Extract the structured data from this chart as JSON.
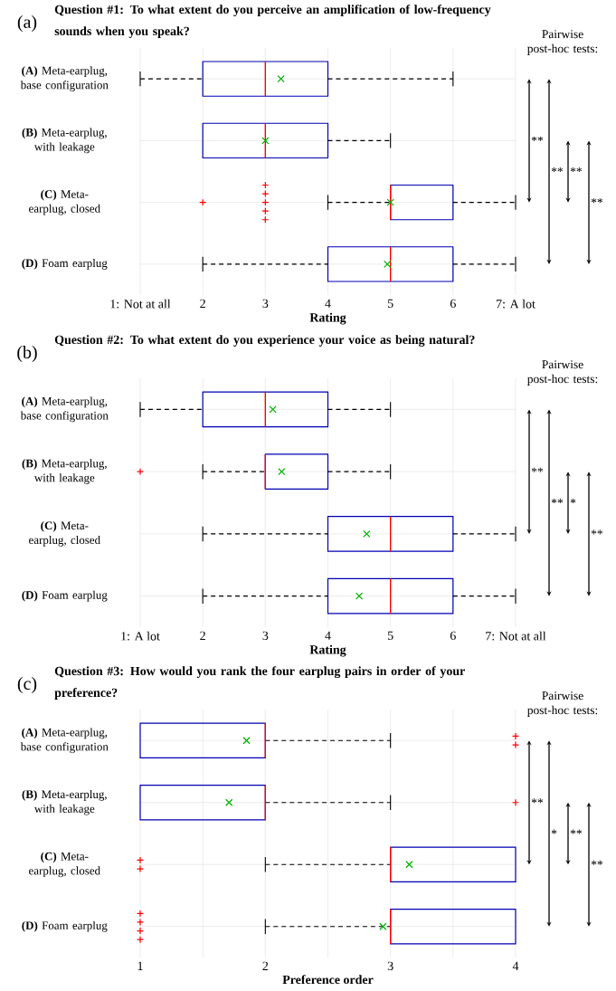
{
  "chart_data": [
    {
      "type": "box",
      "orientation": "horizontal",
      "title": "Question #1: To what extent do you perceive an amplification of low-frequency sounds when you speak?",
      "xlabel": "Rating",
      "categories": [
        "**(A)** Meta-earplug, base configuration",
        "**(B)** Meta-earplug, with leakage",
        "**(C)** Meta-earplug, closed",
        "**(D)** Foam earplug"
      ],
      "boxes": [
        {
          "low": 1,
          "q1": 2,
          "median": 3,
          "q3": 4,
          "high": 6,
          "mean": 3.25
        },
        {
          "low": 2,
          "q1": 2,
          "median": 3,
          "q3": 4,
          "high": 5,
          "mean": 3
        },
        {
          "low": 4,
          "q1": 5,
          "median": 5,
          "q3": 6,
          "high": 7,
          "mean": 5,
          "outliers": [
            2,
            3,
            3,
            3,
            3,
            3
          ]
        },
        {
          "low": 2,
          "q1": 4,
          "median": 5,
          "q3": 6,
          "high": 7,
          "mean": 4.95
        }
      ],
      "xlim": [
        1,
        7
      ],
      "xticks": [
        {
          "value": 1,
          "label": "1: Not at all"
        },
        2,
        3,
        4,
        5,
        6,
        {
          "value": 7,
          "label": "7: A lot"
        }
      ],
      "grid": true,
      "annotations": [
        "(a)",
        "Pairwise post-hoc tests:",
        "**",
        "**",
        "**",
        "**"
      ]
    },
    {
      "type": "box",
      "orientation": "horizontal",
      "title": "Question #2: To what extent do you experience your voice as being natural?",
      "xlabel": "Rating",
      "categories": [
        "**(A)** Meta-earplug, base configuration",
        "**(B)** Meta-earplug, with leakage",
        "**(C)** Meta-earplug, closed",
        "**(D)** Foam earplug"
      ],
      "boxes": [
        {
          "low": 1,
          "q1": 2,
          "median": 3,
          "q3": 4,
          "high": 5,
          "mean": 3.12
        },
        {
          "low": 2,
          "q1": 3,
          "median": 3,
          "q3": 4,
          "high": 5,
          "mean": 3.26,
          "outliers": [
            1
          ]
        },
        {
          "low": 2,
          "q1": 4,
          "median": 5,
          "q3": 6,
          "high": 7,
          "mean": 4.62
        },
        {
          "low": 2,
          "q1": 4,
          "median": 5,
          "q3": 6,
          "high": 7,
          "mean": 4.5
        }
      ],
      "xlim": [
        1,
        7
      ],
      "xticks": [
        {
          "value": 1,
          "label": "1: A lot"
        },
        2,
        3,
        4,
        5,
        6,
        {
          "value": 7,
          "label": "7: Not at all"
        }
      ],
      "grid": true,
      "annotations": [
        "(b)",
        "Pairwise post-hoc tests:",
        "**",
        "**",
        "*",
        "**"
      ]
    },
    {
      "type": "box",
      "orientation": "horizontal",
      "title": "Question #3: How would you rank the four earplug pairs in order of your preference?",
      "xlabel": "Preference order",
      "categories": [
        "**(A)** Meta-earplug, base configuration",
        "**(B)** Meta-earplug, with leakage",
        "**(C)** Meta-earplug, closed",
        "**(D)** Foam earplug"
      ],
      "boxes": [
        {
          "low": 1,
          "q1": 1,
          "median": 2,
          "q3": 2,
          "high": 3,
          "mean": 1.85,
          "outliers": [
            4,
            4
          ]
        },
        {
          "low": 1,
          "q1": 1,
          "median": 2,
          "q3": 2,
          "high": 3,
          "mean": 1.71,
          "outliers": [
            4
          ]
        },
        {
          "low": 2,
          "q1": 3,
          "median": 3,
          "q3": 4,
          "high": 4,
          "mean": 3.15,
          "outliers": [
            1,
            1
          ]
        },
        {
          "low": 2,
          "q1": 3,
          "median": 3,
          "q3": 4,
          "high": 4,
          "mean": 2.94,
          "outliers": [
            1,
            1,
            1,
            1
          ]
        }
      ],
      "xlim": [
        1,
        4
      ],
      "xticks": [
        1,
        {
          "value": 1.5,
          "label": null
        },
        2,
        {
          "value": 2.5,
          "label": null
        },
        3,
        {
          "value": 3.5,
          "label": null
        },
        4
      ],
      "grid": true,
      "annotations": [
        "(c)",
        "Pairwise post-hoc tests:",
        "**",
        "*",
        "**",
        "**"
      ]
    }
  ]
}
